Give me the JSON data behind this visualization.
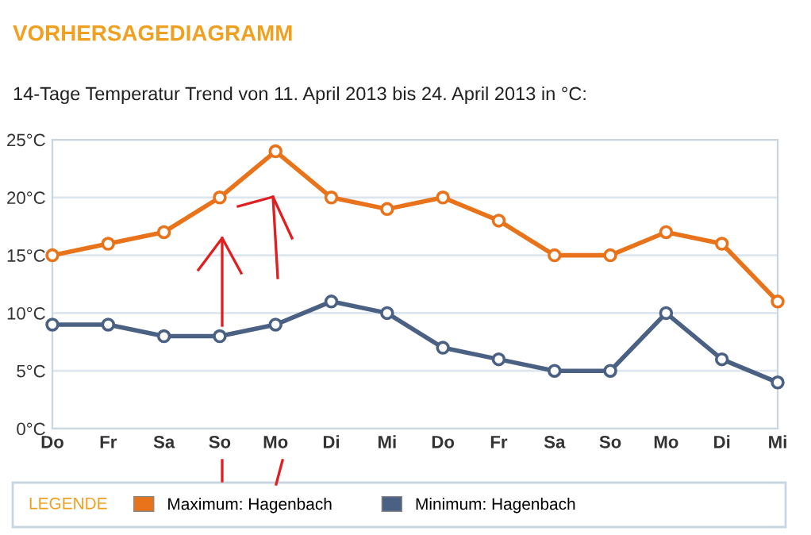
{
  "chart_data": {
    "type": "line",
    "title": "VORHERSAGEDIAGRAMM",
    "subtitle": "14-Tage Temperatur Trend von 11. April 2013 bis 24. April 2013 in °C:",
    "categories": [
      "Do",
      "Fr",
      "Sa",
      "So",
      "Mo",
      "Di",
      "Mi",
      "Do",
      "Fr",
      "Sa",
      "So",
      "Mo",
      "Di",
      "Mi"
    ],
    "series": [
      {
        "name": "Maximum: Hagenbach",
        "color": "#e8731a",
        "values": [
          15,
          16,
          17,
          20,
          24,
          20,
          19,
          20,
          18,
          15,
          15,
          17,
          16,
          11
        ]
      },
      {
        "name": "Minimum: Hagenbach",
        "color": "#4a6184",
        "values": [
          9,
          9,
          8,
          8,
          9,
          11,
          10,
          7,
          6,
          5,
          5,
          10,
          6,
          4
        ]
      }
    ],
    "ylim": [
      0,
      25
    ],
    "yticks": [
      {
        "value": 0,
        "label": "0°C"
      },
      {
        "value": 5,
        "label": "5°C"
      },
      {
        "value": 10,
        "label": "10°C"
      },
      {
        "value": 15,
        "label": "15°C"
      },
      {
        "value": 20,
        "label": "20°C"
      },
      {
        "value": 25,
        "label": "25°C"
      }
    ],
    "grid": "y",
    "legend": "bottom",
    "legend_title": "LEGENDE",
    "marker": "circle",
    "line_style": "solid"
  }
}
